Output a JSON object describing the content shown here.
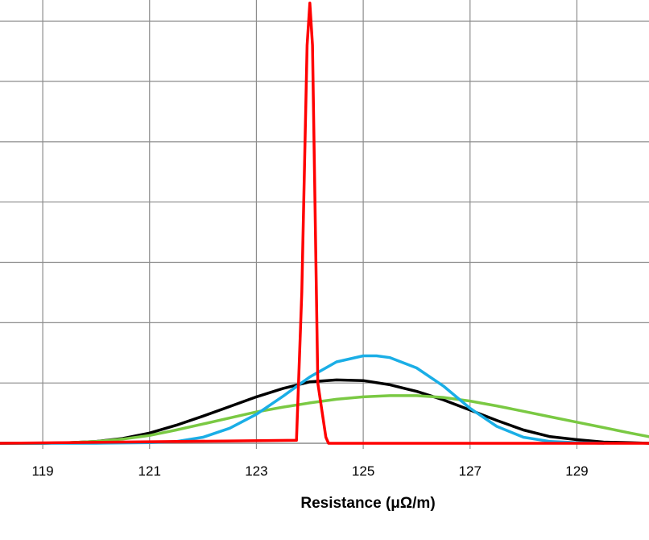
{
  "chart_data": {
    "type": "line",
    "xlabel": "Resistance (μΩ/m)",
    "ylabel": "",
    "xlim": [
      118.2,
      130.35
    ],
    "ylim": [
      0,
      7.35
    ],
    "x_ticks": [
      119,
      121,
      123,
      125,
      127,
      129
    ],
    "x_tick_labels": [
      "119",
      "121",
      "123",
      "125",
      "127",
      "129"
    ],
    "x_gridlines": [
      119,
      121,
      123,
      125,
      127,
      129
    ],
    "y_gridlines": [
      1,
      2,
      3,
      4,
      5,
      6,
      7
    ],
    "grid": true,
    "legend": "none",
    "series": [
      {
        "color": "#000000",
        "x": [
          118.2,
          119.0,
          119.5,
          120.0,
          120.5,
          121.0,
          121.5,
          122.0,
          122.5,
          123.0,
          123.5,
          124.0,
          124.5,
          125.0,
          125.5,
          126.0,
          126.5,
          127.0,
          127.5,
          128.0,
          128.5,
          129.0,
          129.5,
          130.0,
          130.35
        ],
        "values": [
          0.0,
          0.0,
          0.01,
          0.03,
          0.08,
          0.17,
          0.3,
          0.45,
          0.61,
          0.77,
          0.91,
          1.02,
          1.05,
          1.04,
          0.97,
          0.86,
          0.72,
          0.55,
          0.38,
          0.22,
          0.11,
          0.06,
          0.02,
          0.01,
          0.0
        ]
      },
      {
        "color": "#7ac943",
        "x": [
          118.2,
          119.0,
          119.5,
          120.0,
          120.5,
          121.0,
          121.5,
          122.0,
          122.5,
          123.0,
          123.5,
          124.0,
          124.5,
          125.0,
          125.5,
          126.0,
          126.5,
          127.0,
          127.5,
          128.0,
          128.5,
          129.0,
          129.5,
          130.0,
          130.35
        ],
        "values": [
          0.0,
          0.0,
          0.01,
          0.03,
          0.07,
          0.13,
          0.22,
          0.32,
          0.42,
          0.52,
          0.6,
          0.67,
          0.73,
          0.77,
          0.79,
          0.79,
          0.76,
          0.7,
          0.62,
          0.53,
          0.44,
          0.35,
          0.26,
          0.17,
          0.11
        ]
      },
      {
        "color": "#1aaee6",
        "x": [
          118.2,
          120.0,
          121.0,
          121.5,
          122.0,
          122.5,
          123.0,
          123.5,
          124.0,
          124.5,
          125.0,
          125.25,
          125.5,
          126.0,
          126.5,
          127.0,
          127.5,
          128.0,
          128.5,
          129.0,
          129.5
        ],
        "values": [
          0.0,
          0.0,
          0.01,
          0.03,
          0.1,
          0.25,
          0.48,
          0.78,
          1.1,
          1.35,
          1.45,
          1.45,
          1.42,
          1.25,
          0.95,
          0.58,
          0.28,
          0.1,
          0.03,
          0.01,
          0.0
        ]
      },
      {
        "color": "#ff0000",
        "x": [
          118.2,
          123.75,
          123.85,
          123.95,
          124.0,
          124.05,
          124.15,
          124.3,
          124.35,
          130.35
        ],
        "values": [
          0.0,
          0.05,
          2.5,
          6.6,
          7.3,
          6.6,
          1.0,
          0.1,
          0.0,
          0.0
        ]
      }
    ]
  }
}
